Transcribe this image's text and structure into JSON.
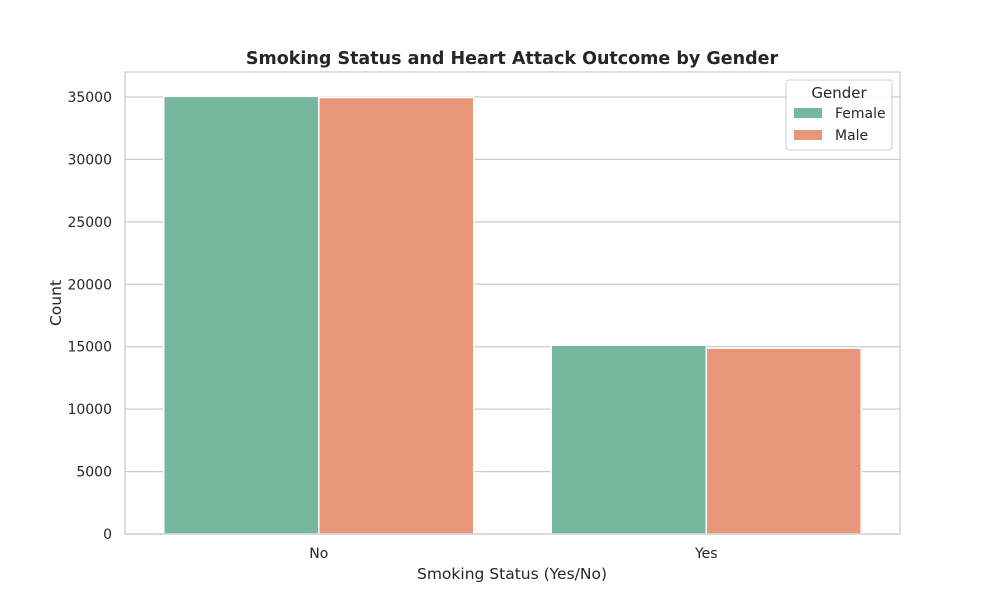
{
  "chart_data": {
    "type": "bar",
    "title": "Smoking Status and Heart Attack Outcome by Gender",
    "xlabel": "Smoking Status (Yes/No)",
    "ylabel": "Count",
    "categories": [
      "No",
      "Yes"
    ],
    "series": [
      {
        "name": "Female",
        "values": [
          35050,
          15120
        ],
        "color": "#76b7a0"
      },
      {
        "name": "Male",
        "values": [
          34960,
          14880
        ],
        "color": "#e8977a"
      }
    ],
    "ylim": [
      0,
      37000
    ],
    "yticks": [
      0,
      5000,
      10000,
      15000,
      20000,
      25000,
      30000,
      35000
    ],
    "grid": true,
    "legend": {
      "title": "Gender",
      "placement": "top-right"
    }
  }
}
